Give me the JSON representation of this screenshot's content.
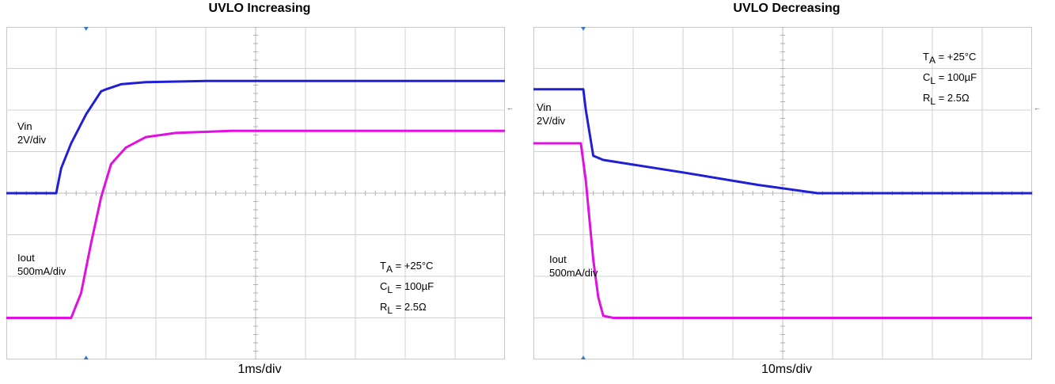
{
  "colors": {
    "vin": "#1f1fd6",
    "iout": "#e010e0",
    "grid": "#d0d0d0",
    "frame": "#c8c8c8",
    "marker": "#3a78c8"
  },
  "chart_data": [
    {
      "type": "line",
      "title": "UVLO Increasing",
      "xlabel": "1ms/div",
      "ylabel": "",
      "x_divisions": 10,
      "y_divisions": 8,
      "xlim": [
        0,
        10
      ],
      "ylim": [
        0,
        8
      ],
      "grid": true,
      "series": [
        {
          "name": "Vin",
          "scale": "2V/div",
          "color": "vin",
          "ref_level_div": 4,
          "points": [
            [
              0,
              4
            ],
            [
              1.0,
              4
            ],
            [
              1.1,
              4.6
            ],
            [
              1.3,
              5.2
            ],
            [
              1.6,
              5.9
            ],
            [
              1.9,
              6.45
            ],
            [
              2.0,
              6.5
            ],
            [
              2.3,
              6.62
            ],
            [
              2.8,
              6.67
            ],
            [
              4,
              6.7
            ],
            [
              10,
              6.7
            ]
          ]
        },
        {
          "name": "Iout",
          "scale": "500mA/div",
          "color": "iout",
          "ref_level_div": 1,
          "points": [
            [
              0,
              1
            ],
            [
              1.3,
              1
            ],
            [
              1.5,
              1.6
            ],
            [
              1.7,
              2.8
            ],
            [
              1.9,
              3.9
            ],
            [
              2.1,
              4.7
            ],
            [
              2.4,
              5.1
            ],
            [
              2.8,
              5.35
            ],
            [
              3.4,
              5.45
            ],
            [
              4.5,
              5.5
            ],
            [
              10,
              5.5
            ]
          ]
        }
      ],
      "annotations": {
        "vin_label": "Vin",
        "vin_scale": "2V/div",
        "iout_label": "Iout",
        "iout_scale": "500mA/div",
        "conditions": [
          {
            "main": "T",
            "sub": "A",
            "rest": " = +25°C"
          },
          {
            "main": "C",
            "sub": "L",
            "rest": " = 100µF"
          },
          {
            "main": "R",
            "sub": "L",
            "rest": " = 2.5Ω"
          }
        ]
      },
      "markers": {
        "trigger": "T",
        "ch1": "1",
        "ch2": "2"
      }
    },
    {
      "type": "line",
      "title": "UVLO Decreasing",
      "xlabel": "10ms/div",
      "ylabel": "",
      "x_divisions": 10,
      "y_divisions": 8,
      "xlim": [
        0,
        10
      ],
      "ylim": [
        0,
        8
      ],
      "grid": true,
      "series": [
        {
          "name": "Vin",
          "scale": "2V/div",
          "color": "vin",
          "ref_level_div": 4,
          "points": [
            [
              0,
              6.5
            ],
            [
              1.0,
              6.5
            ],
            [
              1.05,
              6.0
            ],
            [
              1.2,
              4.9
            ],
            [
              1.4,
              4.8
            ],
            [
              3.0,
              4.5
            ],
            [
              4.5,
              4.2
            ],
            [
              5.7,
              4.0
            ],
            [
              10,
              4.0
            ]
          ]
        },
        {
          "name": "Iout",
          "scale": "500mA/div",
          "color": "iout",
          "ref_level_div": 1,
          "points": [
            [
              0,
              5.2
            ],
            [
              0.95,
              5.2
            ],
            [
              1.05,
              4.3
            ],
            [
              1.2,
              2.4
            ],
            [
              1.3,
              1.5
            ],
            [
              1.4,
              1.05
            ],
            [
              1.6,
              1.0
            ],
            [
              10,
              1.0
            ]
          ]
        }
      ],
      "annotations": {
        "vin_label": "Vin",
        "vin_scale": "2V/div",
        "iout_label": "Iout",
        "iout_scale": "500mA/div",
        "conditions": [
          {
            "main": "T",
            "sub": "A",
            "rest": " = +25°C"
          },
          {
            "main": "C",
            "sub": "L",
            "rest": " = 100µF"
          },
          {
            "main": "R",
            "sub": "L",
            "rest": " = 2.5Ω"
          }
        ]
      },
      "markers": {
        "trigger": "T",
        "ch1": "1",
        "ch2": "2"
      }
    }
  ]
}
